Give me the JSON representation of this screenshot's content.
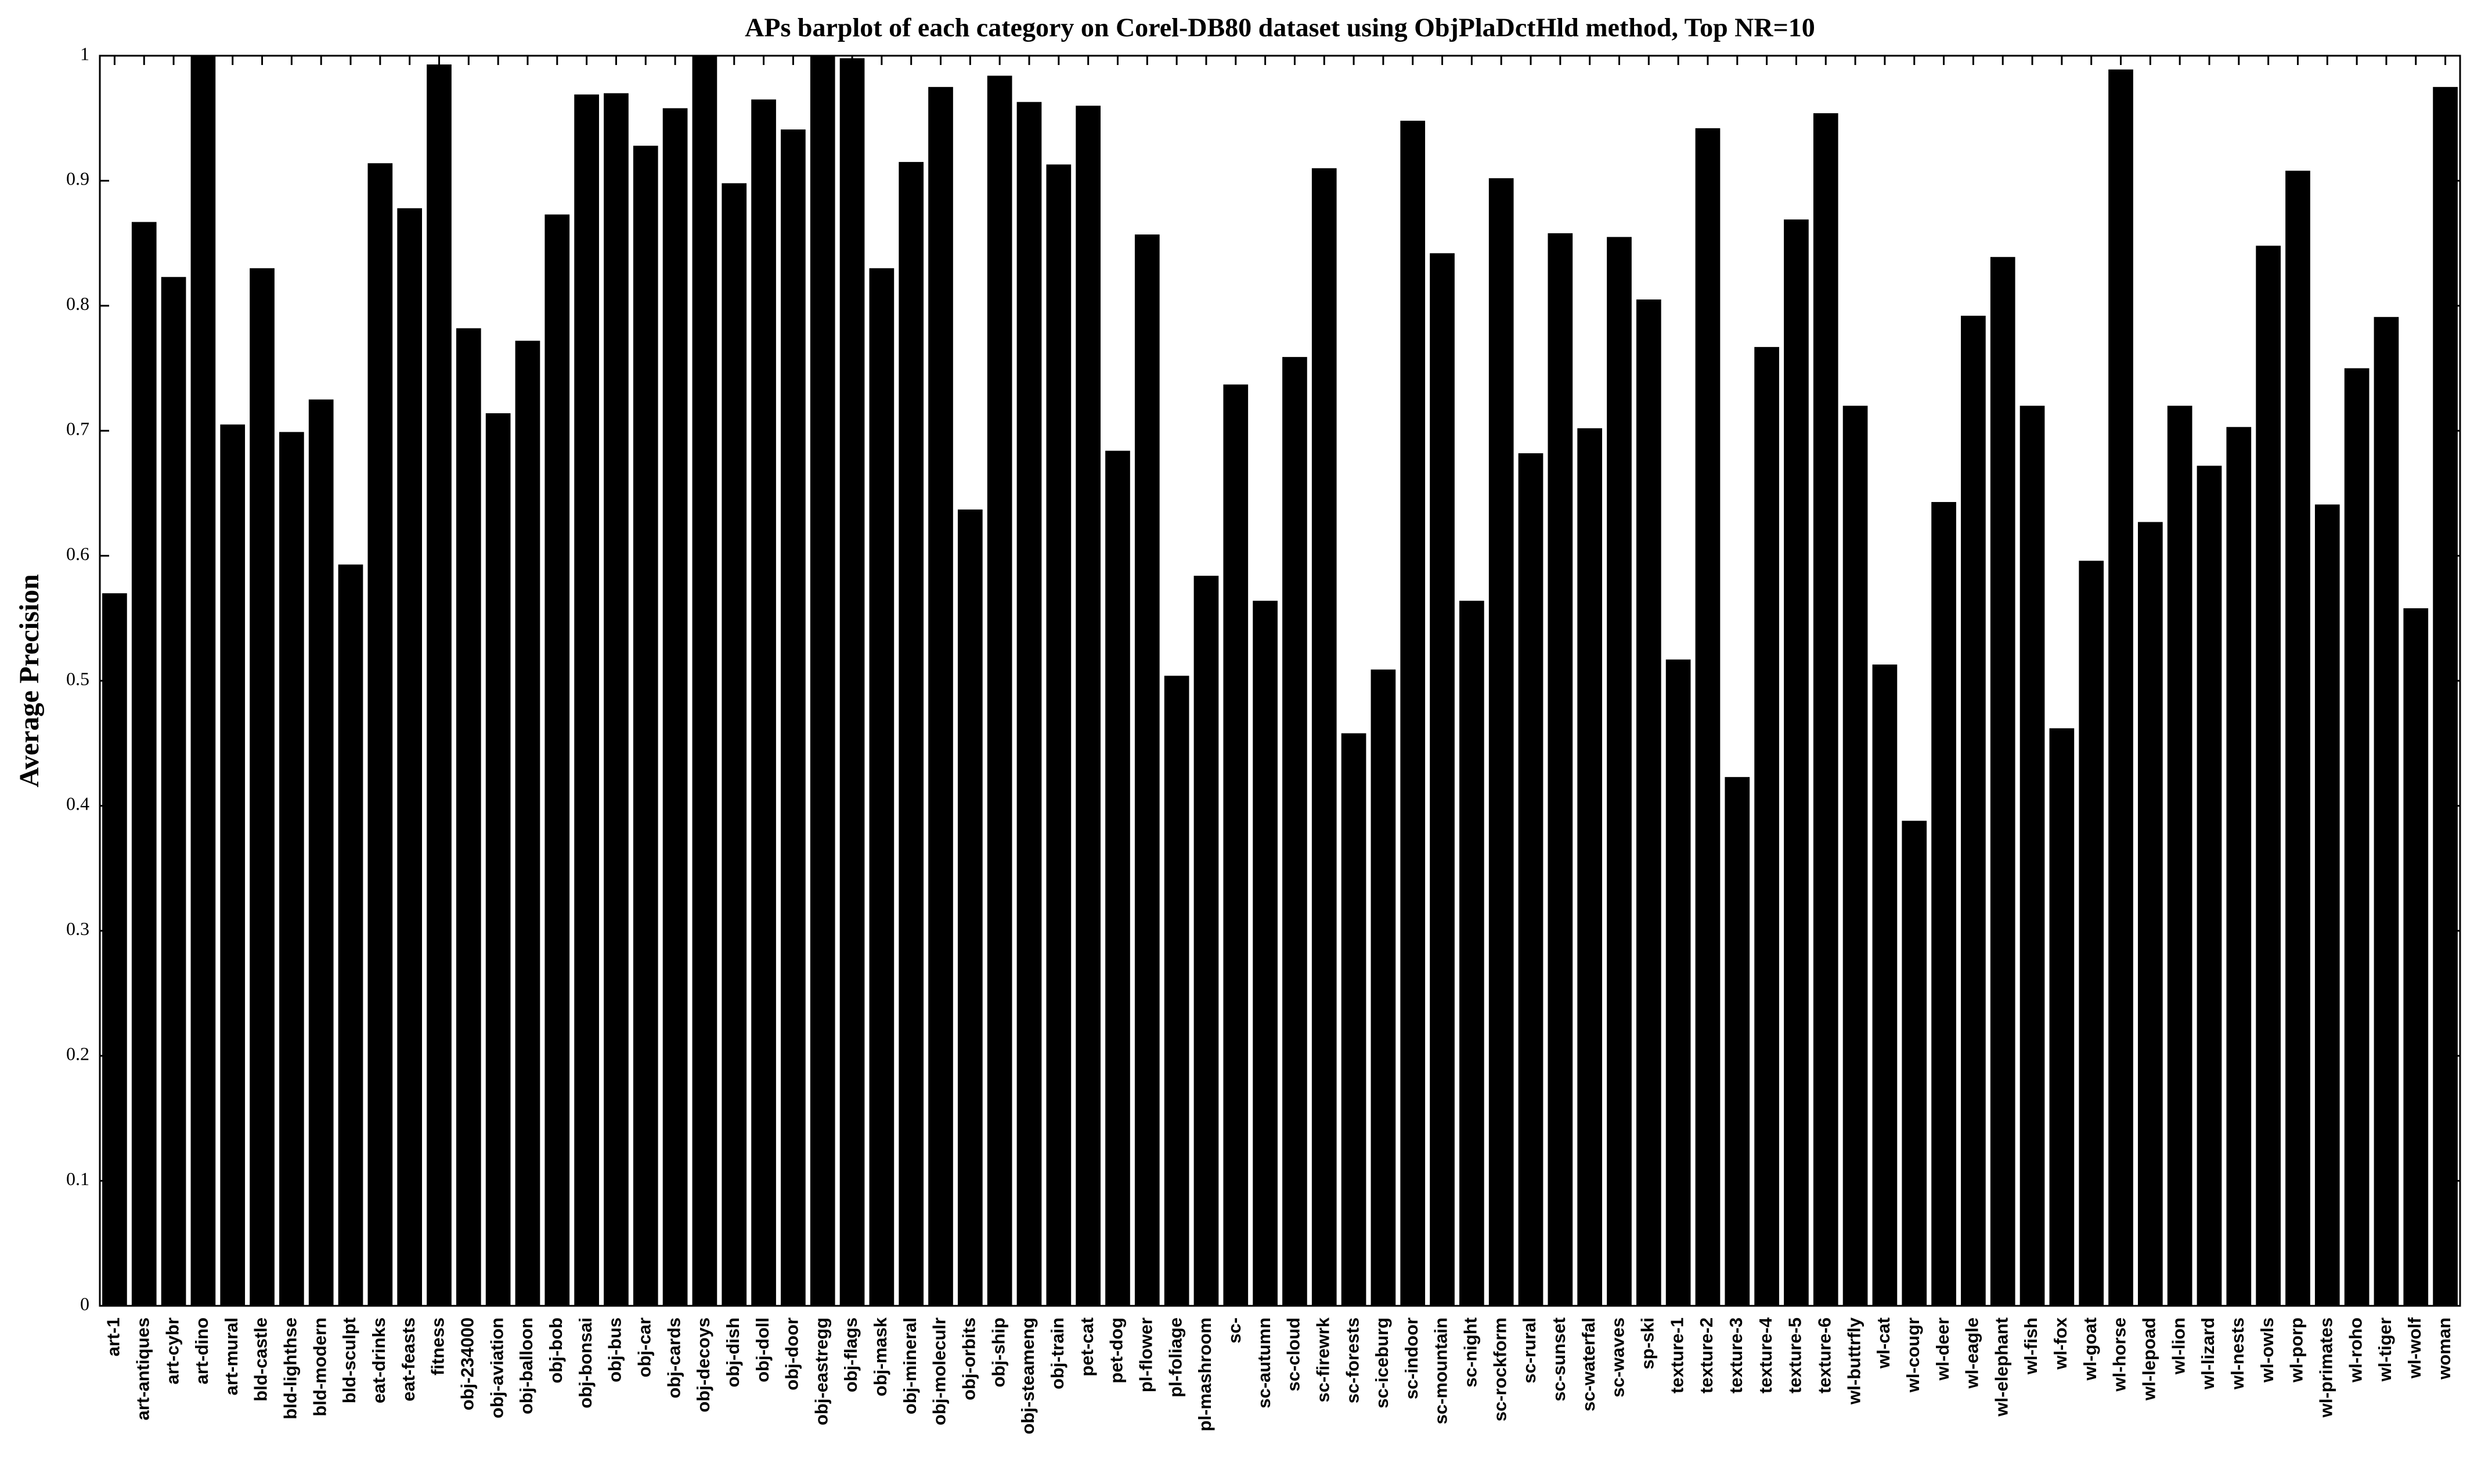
{
  "chart_data": {
    "type": "bar",
    "title": "APs barplot of each category on Corel-DB80 dataset using ObjPlaDctHld method, Top NR=10",
    "ylabel": "Average Precision",
    "categories": [
      "art-1",
      "art-antiques",
      "art-cybr",
      "art-dino",
      "art-mural",
      "bld-castle",
      "bld-lighthse",
      "bld-modern",
      "bld-sculpt",
      "eat-drinks",
      "eat-feasts",
      "fitness",
      "obj-234000",
      "obj-aviation",
      "obj-balloon",
      "obj-bob",
      "obj-bonsai",
      "obj-bus",
      "obj-car",
      "obj-cards",
      "obj-decoys",
      "obj-dish",
      "obj-doll",
      "obj-door",
      "obj-eastregg",
      "obj-flags",
      "obj-mask",
      "obj-mineral",
      "obj-moleculr",
      "obj-orbits",
      "obj-ship",
      "obj-steameng",
      "obj-train",
      "pet-cat",
      "pet-dog",
      "pl-flower",
      "pl-foliage",
      "pl-mashroom",
      "sc-",
      "sc-autumn",
      "sc-cloud",
      "sc-firewrk",
      "sc-forests",
      "sc-iceburg",
      "sc-indoor",
      "sc-mountain",
      "sc-night",
      "sc-rockform",
      "sc-rural",
      "sc-sunset",
      "sc-waterfal",
      "sc-waves",
      "sp-ski",
      "texture-1",
      "texture-2",
      "texture-3",
      "texture-4",
      "texture-5",
      "texture-6",
      "wl-buttrfly",
      "wl-cat",
      "wl-cougr",
      "wl-deer",
      "wl-eagle",
      "wl-elephant",
      "wl-fish",
      "wl-fox",
      "wl-goat",
      "wl-horse",
      "wl-lepoad",
      "wl-lion",
      "wl-lizard",
      "wl-nests",
      "wl-owls",
      "wl-porp",
      "wl-primates",
      "wl-roho",
      "wl-tiger",
      "wl-wolf",
      "woman"
    ],
    "values": [
      0.57,
      0.867,
      0.823,
      1.0,
      0.705,
      0.83,
      0.699,
      0.725,
      0.593,
      0.914,
      0.878,
      0.993,
      0.782,
      0.714,
      0.772,
      0.873,
      0.969,
      0.97,
      0.928,
      0.958,
      1.0,
      0.898,
      0.965,
      0.941,
      1.0,
      0.998,
      0.83,
      0.915,
      0.975,
      0.637,
      0.984,
      0.963,
      0.913,
      0.96,
      0.684,
      0.857,
      0.504,
      0.584,
      0.737,
      0.564,
      0.759,
      0.91,
      0.458,
      0.509,
      0.948,
      0.842,
      0.564,
      0.902,
      0.682,
      0.858,
      0.702,
      0.855,
      0.805,
      0.517,
      0.942,
      0.423,
      0.767,
      0.869,
      0.954,
      0.72,
      0.513,
      0.388,
      0.643,
      0.792,
      0.839,
      0.72,
      0.462,
      0.596,
      0.989,
      0.627,
      0.72,
      0.672,
      0.703,
      0.848,
      0.908,
      0.641,
      0.75,
      0.791,
      0.558,
      0.975
    ],
    "color": "#000000",
    "ylim": [
      0,
      1
    ],
    "yticks": [
      0,
      0.1,
      0.2,
      0.3,
      0.4,
      0.5,
      0.6,
      0.7,
      0.8,
      0.9,
      1
    ],
    "grid": false
  }
}
